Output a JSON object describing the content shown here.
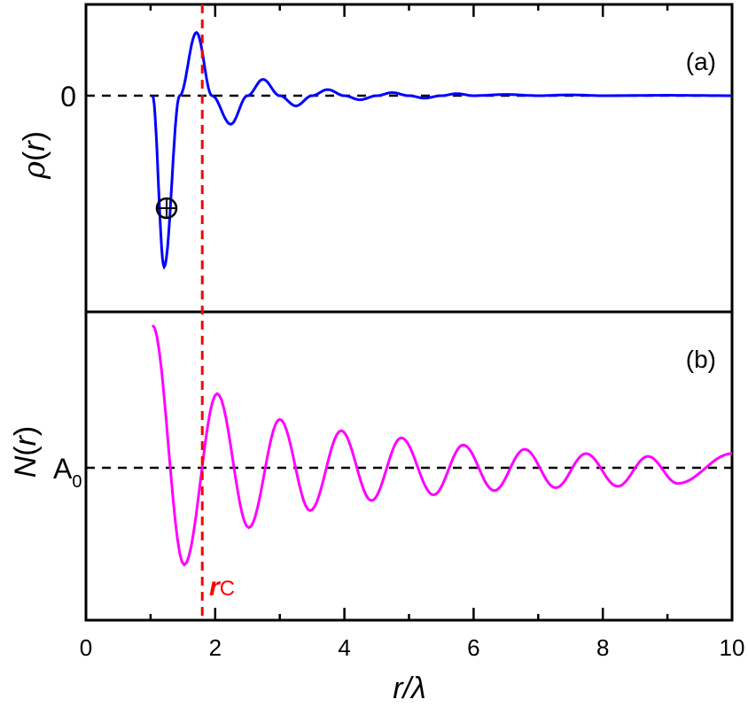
{
  "chart_data": [
    {
      "type": "line",
      "panel": "(a)",
      "ylabel": "ρ(r)",
      "xlabel": "r/λ",
      "xlim": [
        0,
        10
      ],
      "y_tick_labels": [
        "0"
      ],
      "reference_line": {
        "y": 0,
        "style": "dashed",
        "color": "#000000"
      },
      "annotation": {
        "symbol": "⊕",
        "x": 1.3,
        "y": -0.55
      },
      "series": [
        {
          "name": "ρ(r)",
          "color": "#0000ff",
          "x": [
            1.03,
            1.21,
            1.45,
            1.71,
            1.95,
            2.24,
            2.5,
            2.74,
            3.0,
            3.25,
            3.5,
            3.74,
            4.0,
            4.24,
            4.5,
            4.74,
            5.0,
            5.24,
            5.5,
            5.74,
            6.0,
            6.5,
            7.0,
            7.5,
            8.0,
            9.0,
            10.0
          ],
          "y": [
            0.0,
            -0.84,
            0.0,
            0.31,
            0.0,
            -0.14,
            0.0,
            0.08,
            0.0,
            -0.05,
            0.0,
            0.03,
            0.0,
            -0.02,
            0.0,
            0.015,
            0.0,
            -0.012,
            0.0,
            0.01,
            0.0,
            0.006,
            0.0,
            0.004,
            0.0,
            0.002,
            0.0
          ]
        }
      ]
    },
    {
      "type": "line",
      "panel": "(b)",
      "ylabel": "N(r)",
      "xlabel": "r/λ",
      "xlim": [
        0,
        10
      ],
      "y_tick_labels": [
        "A₀"
      ],
      "reference_line": {
        "y": 0,
        "label": "A₀",
        "style": "dashed",
        "color": "#000000"
      },
      "series": [
        {
          "name": "N(r) − A₀",
          "color": "#ff00ff",
          "x": [
            1.03,
            1.52,
            2.03,
            2.52,
            3.0,
            3.47,
            3.95,
            4.42,
            4.88,
            5.38,
            5.84,
            6.32,
            6.79,
            7.27,
            7.74,
            8.23,
            8.7,
            9.16,
            10.0
          ],
          "y": [
            1.0,
            -0.68,
            0.52,
            -0.42,
            0.34,
            -0.3,
            0.26,
            -0.23,
            0.21,
            -0.19,
            0.16,
            -0.16,
            0.13,
            -0.14,
            0.1,
            -0.13,
            0.08,
            -0.11,
            0.1
          ]
        }
      ]
    }
  ],
  "shared": {
    "xlabel_italic": "r",
    "xlabel_rest": "/λ",
    "x_ticks": [
      0,
      2,
      4,
      6,
      8,
      10
    ],
    "x_tick_labels": [
      "0",
      "2",
      "4",
      "6",
      "8",
      "10"
    ],
    "x_minor_ticks": [
      1,
      3,
      5,
      7,
      9
    ],
    "critical_line": {
      "x": 1.8,
      "color": "#ff0000",
      "style": "dashed",
      "label_main": "r",
      "label_sub": "C"
    }
  },
  "panels": {
    "a": {
      "label": "(a)",
      "ylabel_greek": "ρ",
      "ylabel_rest": "(r)",
      "zero_label": "0"
    },
    "b": {
      "label": "(b)",
      "ylabel_main": "N",
      "ylabel_rest": "(r)",
      "ref_label": "A",
      "ref_sub": "0"
    }
  }
}
